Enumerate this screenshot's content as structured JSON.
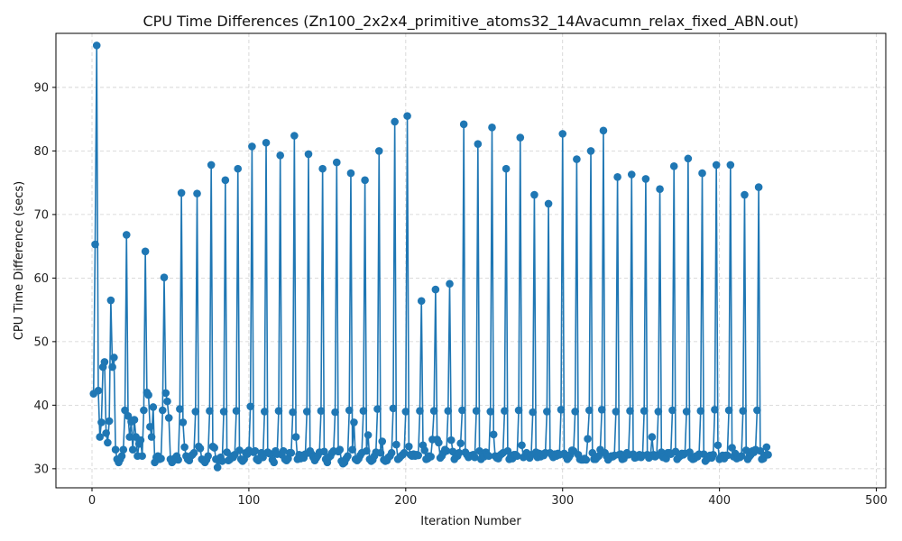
{
  "chart_data": {
    "type": "line",
    "title": "CPU Time Differences (Zn100_2x2x4_primitive_atoms32_14Avacumn_relax_fixed_ABN.out)",
    "xlabel": "Iteration Number",
    "ylabel": "CPU Time Difference (secs)",
    "xlim": [
      -23,
      506
    ],
    "ylim": [
      27,
      98.5
    ],
    "xticks": [
      0,
      100,
      200,
      300,
      400,
      500
    ],
    "yticks": [
      30,
      40,
      50,
      60,
      70,
      80,
      90
    ],
    "grid": true,
    "line_color": "#1f77b4",
    "marker": "circle",
    "y": [
      41.8,
      65.3,
      96.6,
      42.3,
      35,
      37.3,
      46,
      46.8,
      35.6,
      34.1,
      37.5,
      56.5,
      46,
      47.5,
      33,
      31.5,
      31,
      31.5,
      32,
      33,
      39.2,
      66.8,
      38.3,
      35,
      37.4,
      33,
      37.7,
      35,
      32,
      33.9,
      34.5,
      32,
      39.2,
      64.2,
      42,
      41.6,
      36.6,
      35,
      39.7,
      31,
      31.8,
      32,
      31.5,
      31.6,
      39.2,
      60.1,
      41.9,
      40.6,
      38,
      31.5,
      31,
      31.3,
      31.7,
      32,
      31.4,
      39.4,
      73.4,
      37.3,
      33.4,
      32,
      31.5,
      31.3,
      32,
      32.2,
      32.5,
      39,
      73.3,
      33.5,
      33.2,
      31.5,
      31.3,
      31,
      31.4,
      32,
      39.1,
      77.8,
      33.5,
      33.3,
      31.5,
      30.2,
      31.3,
      31.8,
      31.2,
      39,
      75.4,
      32.6,
      31.3,
      31.5,
      32,
      31.8,
      32.2,
      39.1,
      77.2,
      32.9,
      31.5,
      31.2,
      31.5,
      32.5,
      32.3,
      32.9,
      39.8,
      80.7,
      32.6,
      32.8,
      31.5,
      31.3,
      31.7,
      32.5,
      31.8,
      39,
      81.3,
      32.6,
      32.4,
      32.3,
      31.4,
      31,
      32.8,
      32.3,
      39.1,
      79.3,
      32.2,
      32.8,
      31.5,
      31.3,
      31.6,
      32.5,
      32.5,
      38.9,
      82.4,
      35,
      31.5,
      32.2,
      31.6,
      32.1,
      31.7,
      32.3,
      39,
      79.5,
      32.8,
      32.3,
      31.8,
      31.3,
      31.7,
      32.1,
      32.6,
      39.1,
      77.2,
      32.7,
      31.5,
      31,
      31.8,
      32,
      32.5,
      32.8,
      38.9,
      78.2,
      32.7,
      33,
      31.2,
      30.8,
      31,
      31.6,
      32,
      39.2,
      76.5,
      33,
      37.3,
      31.5,
      31.3,
      31.6,
      32.1,
      32.5,
      39.1,
      75.4,
      32.8,
      35.3,
      31.5,
      31.2,
      31.4,
      32,
      32.6,
      39.4,
      80,
      32.5,
      34.3,
      31.4,
      31.2,
      31.3,
      31.8,
      32,
      32.5,
      39.5,
      84.6,
      33.8,
      31.5,
      31.7,
      32,
      32.2,
      32.5,
      39,
      85.5,
      33.5,
      32.2,
      32,
      32.3,
      32,
      32.2,
      32.1,
      39.1,
      56.4,
      33.7,
      32.9,
      31.5,
      31.6,
      32,
      31.9,
      34.6,
      39.1,
      58.2,
      34.6,
      34.1,
      31.7,
      32,
      32.5,
      33,
      32.8,
      39.1,
      59.1,
      34.5,
      32.7,
      31.5,
      31.9,
      32,
      32.5,
      34,
      39.2,
      84.2,
      32.6,
      32.2,
      31.8,
      32,
      32.1,
      32.2,
      31.8,
      39.1,
      81.1,
      32.8,
      31.5,
      32.2,
      31.9,
      32.6,
      32.2,
      32,
      39,
      83.7,
      35.4,
      32,
      31.7,
      31.6,
      32.1,
      32.3,
      32.5,
      39.1,
      77.2,
      32.8,
      31.5,
      31.9,
      31.6,
      32.2,
      32.2,
      32,
      39.2,
      82.1,
      33.7,
      31.8,
      32,
      32.5,
      32.2,
      31.7,
      32.2,
      38.9,
      73.1,
      32.6,
      31.8,
      32.4,
      31.9,
      32.3,
      32.1,
      32.5,
      39,
      71.7,
      32.5,
      32.2,
      31.8,
      32.3,
      32,
      32.4,
      32.2,
      39.3,
      82.7,
      32.4,
      32,
      31.5,
      31.8,
      32.2,
      32.9,
      32.8,
      39,
      78.7,
      32.2,
      31.5,
      31.4,
      31.4,
      31.6,
      31.4,
      34.7,
      39.2,
      80,
      32.5,
      31.5,
      31.5,
      31.8,
      32,
      33,
      39.3,
      83.2,
      32.5,
      32,
      31.4,
      31.7,
      32,
      31.9,
      32.1,
      39,
      75.9,
      32.2,
      32.3,
      31.5,
      31.6,
      32.1,
      32.5,
      32.2,
      39.1,
      76.3,
      32.3,
      31.7,
      31.8,
      32,
      32.2,
      31.8,
      32.1,
      39.1,
      75.6,
      32.2,
      31.7,
      31.9,
      35,
      32.2,
      31.9,
      32.1,
      39,
      74,
      32.6,
      31.8,
      32,
      31.6,
      32.5,
      32.5,
      32.3,
      39.2,
      77.6,
      32.7,
      31.5,
      31.8,
      32,
      32.4,
      32.2,
      32.4,
      39,
      78.8,
      32.6,
      31.7,
      31.5,
      31.6,
      32,
      31.9,
      32.3,
      39.1,
      76.5,
      32.3,
      31.2,
      31.5,
      31.8,
      32.1,
      31.7,
      32.2,
      39.3,
      77.8,
      33.7,
      31.5,
      31.9,
      32.1,
      31.6,
      32.1,
      32.1,
      39.2,
      77.8,
      33.3,
      31.9,
      32.4,
      31.6,
      31.9,
      31.8,
      32,
      39.1,
      73.1,
      32.9,
      31.5,
      31.9,
      32.2,
      32.8,
      32.6,
      33,
      39.2,
      74.3,
      32.8,
      31.5,
      31.6,
      32.1,
      33.4,
      32.2
    ]
  }
}
